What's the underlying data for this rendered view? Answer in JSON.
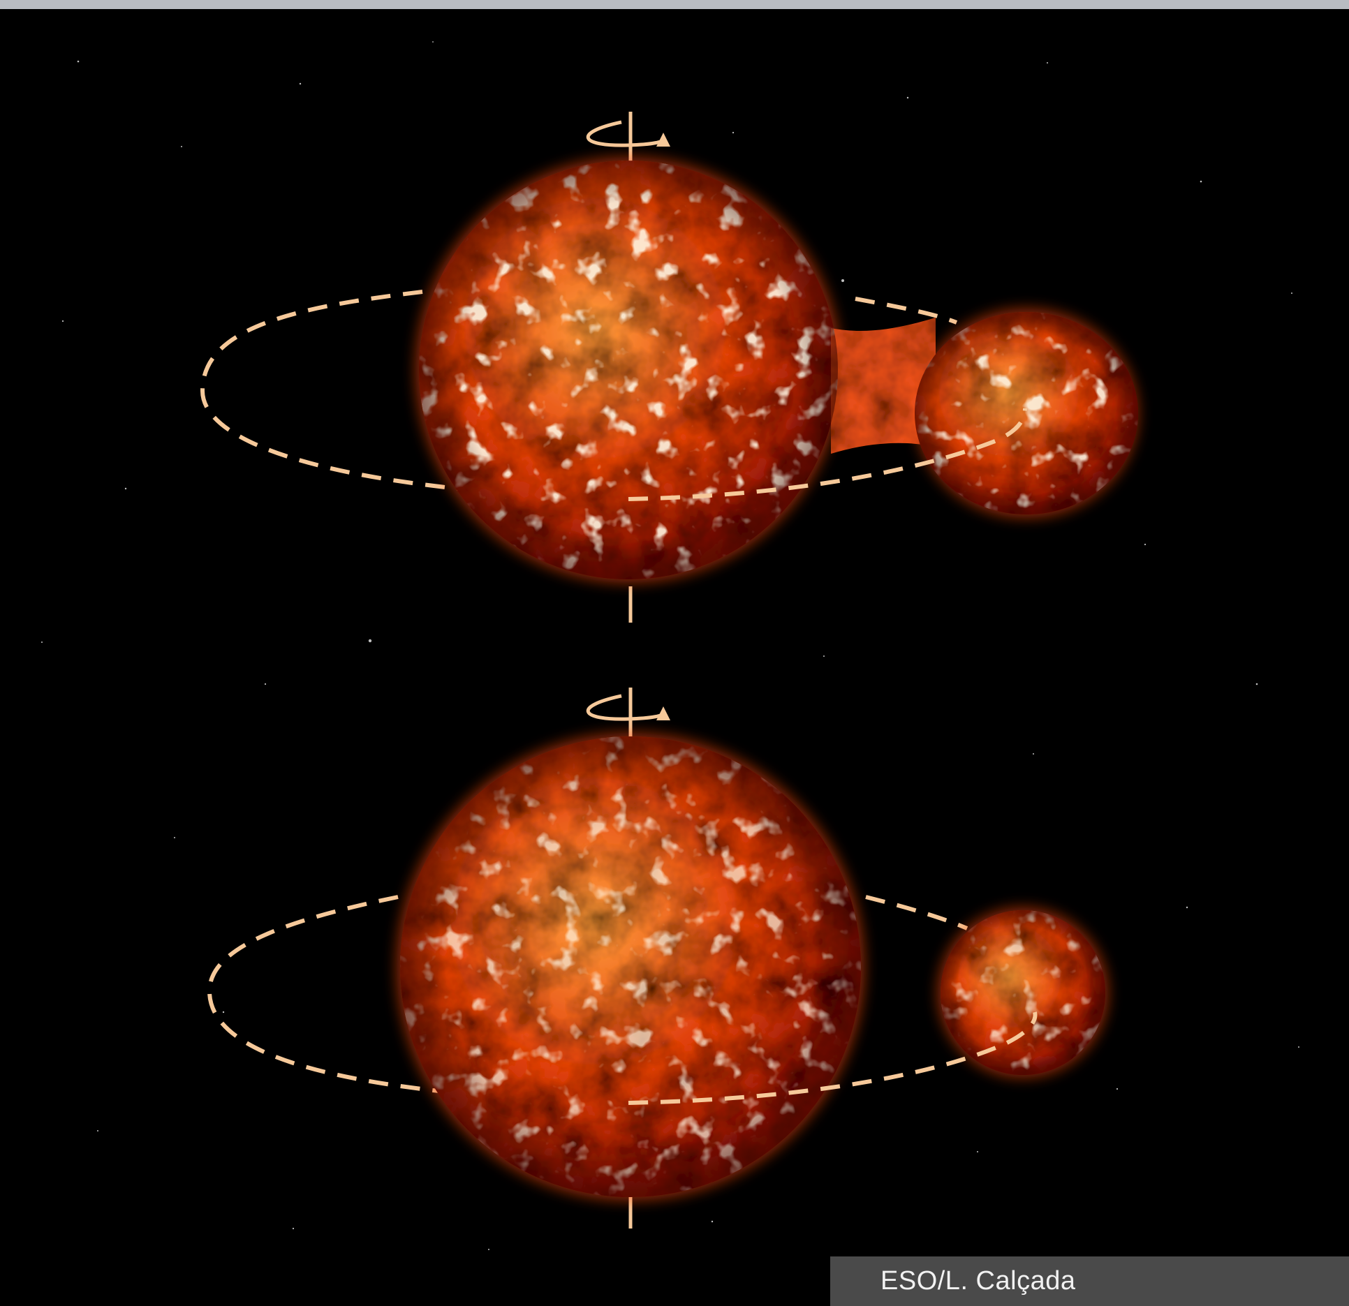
{
  "credit": "ESO/L. Calçada",
  "colors": {
    "background": "#000000",
    "top_strip": "#b9bcc2",
    "orbit_line": "#f6c99a",
    "star_core": "#ff9a3a",
    "star_mid": "#e0400f",
    "star_edge": "#8a1206",
    "credit_box": "#4a4a4a",
    "credit_text": "#f2f2f2"
  },
  "illustration": {
    "panels": [
      {
        "name": "contact-binary",
        "has_rotation_arrow": true
      },
      {
        "name": "detached-binary",
        "has_rotation_arrow": true
      }
    ]
  }
}
